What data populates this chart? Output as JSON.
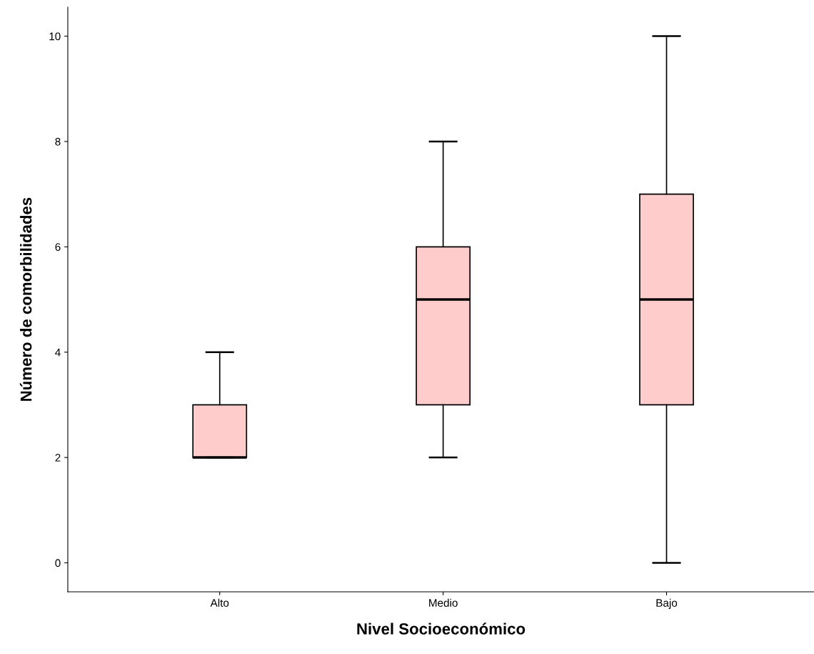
{
  "chart_data": {
    "type": "box",
    "xlabel": "Nivel Socioeconómico",
    "ylabel": "Número de comorbilidades",
    "categories": [
      "Alto",
      "Medio",
      "Bajo"
    ],
    "boxes": [
      {
        "low": 2,
        "q1": 2,
        "median": 2,
        "q3": 3,
        "high": 4
      },
      {
        "low": 2,
        "q1": 3,
        "median": 5,
        "q3": 6,
        "high": 8
      },
      {
        "low": 0,
        "q1": 3,
        "median": 5,
        "q3": 7,
        "high": 10
      }
    ],
    "color": "#ffcccc",
    "ylim": [
      -0.55,
      10.55
    ],
    "yticks": [
      0,
      2,
      4,
      6,
      8,
      10
    ],
    "grid": false
  }
}
